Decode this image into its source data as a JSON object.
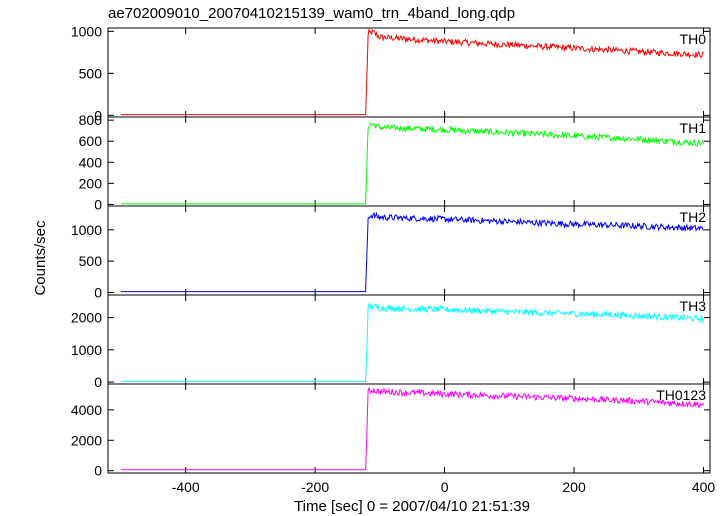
{
  "chart_data": {
    "type": "line",
    "title": "ae702009010_20070410215139_wam0_trn_4band_long.qdp",
    "xlabel": "Time [sec] 0 = 2007/04/10 21:51:39",
    "ylabel": "Counts/sec",
    "xlim": [
      -520,
      410
    ],
    "xticks": [
      -400,
      -200,
      0,
      200,
      400
    ],
    "grid": false,
    "series": [
      {
        "name": "TH0",
        "color": "#ff0000",
        "ylim": [
          -20,
          1040
        ],
        "yticks": [
          0,
          500,
          1000
        ],
        "x": [
          -500,
          -124,
          -122,
          -118,
          -110,
          -100,
          0,
          100,
          200,
          300,
          350,
          400
        ],
        "y": [
          8,
          8,
          8,
          980,
          990,
          930,
          880,
          840,
          800,
          760,
          740,
          720
        ]
      },
      {
        "name": "TH1",
        "color": "#00ff00",
        "ylim": [
          -15,
          830
        ],
        "yticks": [
          0,
          200,
          400,
          600,
          800
        ],
        "x": [
          -500,
          -124,
          -122,
          -118,
          -110,
          -100,
          0,
          100,
          200,
          300,
          350,
          400
        ],
        "y": [
          5,
          5,
          5,
          760,
          760,
          730,
          710,
          680,
          650,
          620,
          600,
          580
        ]
      },
      {
        "name": "TH2",
        "color": "#0000ff",
        "ylim": [
          -40,
          1380
        ],
        "yticks": [
          0,
          500,
          1000
        ],
        "x": [
          -500,
          -124,
          -122,
          -118,
          -110,
          -100,
          0,
          100,
          200,
          300,
          350,
          400
        ],
        "y": [
          15,
          15,
          15,
          1220,
          1230,
          1200,
          1170,
          1130,
          1090,
          1060,
          1040,
          1020
        ]
      },
      {
        "name": "TH3",
        "color": "#00ffff",
        "ylim": [
          -60,
          2700
        ],
        "yticks": [
          0,
          1000,
          2000
        ],
        "x": [
          -500,
          -124,
          -122,
          -118,
          -110,
          -100,
          0,
          100,
          200,
          300,
          350,
          400
        ],
        "y": [
          20,
          20,
          20,
          2350,
          2350,
          2300,
          2250,
          2180,
          2120,
          2060,
          2010,
          1960
        ]
      },
      {
        "name": "TH0123",
        "color": "#ff00ff",
        "ylim": [
          -150,
          5700
        ],
        "yticks": [
          0,
          2000,
          4000
        ],
        "x": [
          -500,
          -124,
          -122,
          -118,
          -110,
          -100,
          0,
          100,
          200,
          300,
          350,
          400
        ],
        "y": [
          60,
          60,
          60,
          5250,
          5300,
          5200,
          5050,
          4900,
          4750,
          4580,
          4450,
          4350
        ]
      }
    ]
  }
}
